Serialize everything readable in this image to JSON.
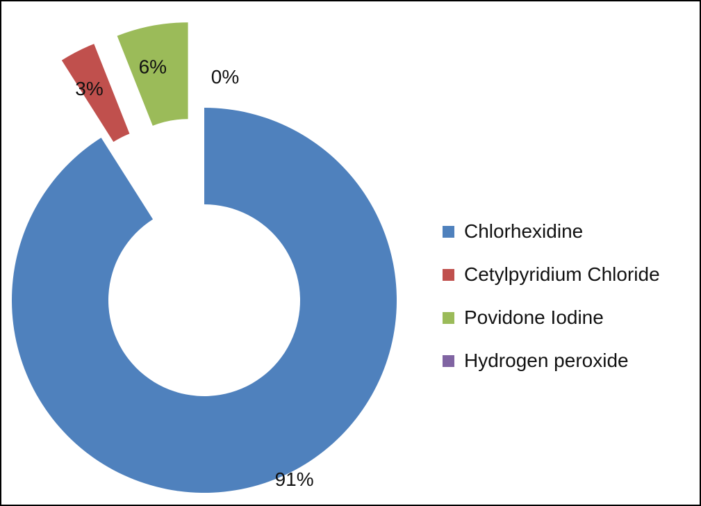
{
  "chart_data": {
    "type": "pie",
    "style": "donut",
    "title": "",
    "legend_position": "right",
    "series": [
      {
        "name": "Chlorhexidine",
        "value": 91,
        "label": "91%",
        "color": "#4f81bd",
        "exploded": false
      },
      {
        "name": "Cetylpyridium Chloride",
        "value": 3,
        "label": "3%",
        "color": "#c0504d",
        "exploded": true
      },
      {
        "name": "Povidone Iodine",
        "value": 6,
        "label": "6%",
        "color": "#9bbb59",
        "exploded": true
      },
      {
        "name": "Hydrogen peroxide",
        "value": 0,
        "label": "0%",
        "color": "#8064a2",
        "exploded": true
      }
    ]
  }
}
